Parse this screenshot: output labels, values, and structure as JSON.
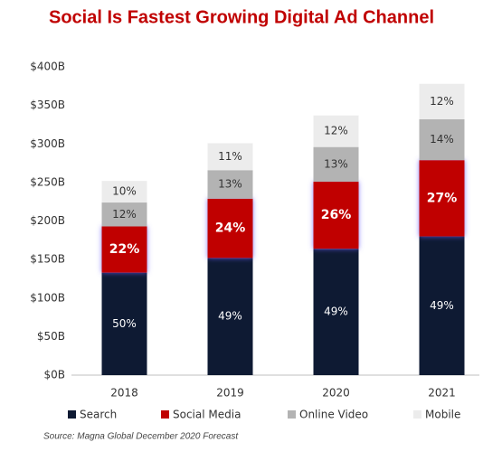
{
  "chart_data": {
    "type": "stacked_bar",
    "title": "Social Is Fastest Growing Digital Ad Channel",
    "categories": [
      "2018",
      "2019",
      "2020",
      "2021"
    ],
    "series": [
      {
        "name": "Search",
        "color": "#0e1a33",
        "label_color": "#ffffff",
        "values": [
          133,
          152,
          164,
          180
        ],
        "labels": [
          "50%",
          "49%",
          "49%",
          "49%"
        ],
        "label_bold": false
      },
      {
        "name": "Social Media",
        "color": "#c00000",
        "label_color": "#ffffff",
        "values": [
          60,
          77,
          87,
          99
        ],
        "labels": [
          "22%",
          "24%",
          "26%",
          "27%"
        ],
        "label_bold": true
      },
      {
        "name": "Online Video",
        "color": "#b3b3b3",
        "label_color": "#333333",
        "values": [
          31,
          37,
          45,
          53
        ],
        "labels": [
          "12%",
          "13%",
          "13%",
          "14%"
        ],
        "label_bold": false
      },
      {
        "name": "Mobile",
        "color": "#ececec",
        "label_color": "#333333",
        "values": [
          28,
          35,
          41,
          46
        ],
        "labels": [
          "10%",
          "11%",
          "12%",
          "12%"
        ],
        "label_bold": false
      }
    ],
    "ylim": [
      0,
      400
    ],
    "yticks": [
      {
        "value": 0,
        "label": "$0B"
      },
      {
        "value": 50,
        "label": "$50B"
      },
      {
        "value": 100,
        "label": "$100B"
      },
      {
        "value": 150,
        "label": "$150B"
      },
      {
        "value": 200,
        "label": "$200B"
      },
      {
        "value": 250,
        "label": "$250B"
      },
      {
        "value": 300,
        "label": "$300B"
      },
      {
        "value": 350,
        "label": "$350B"
      },
      {
        "value": 400,
        "label": "$400B"
      }
    ],
    "grid": false,
    "legend": "bottom",
    "source": "Source: Magna Global December 2020 Forecast"
  }
}
